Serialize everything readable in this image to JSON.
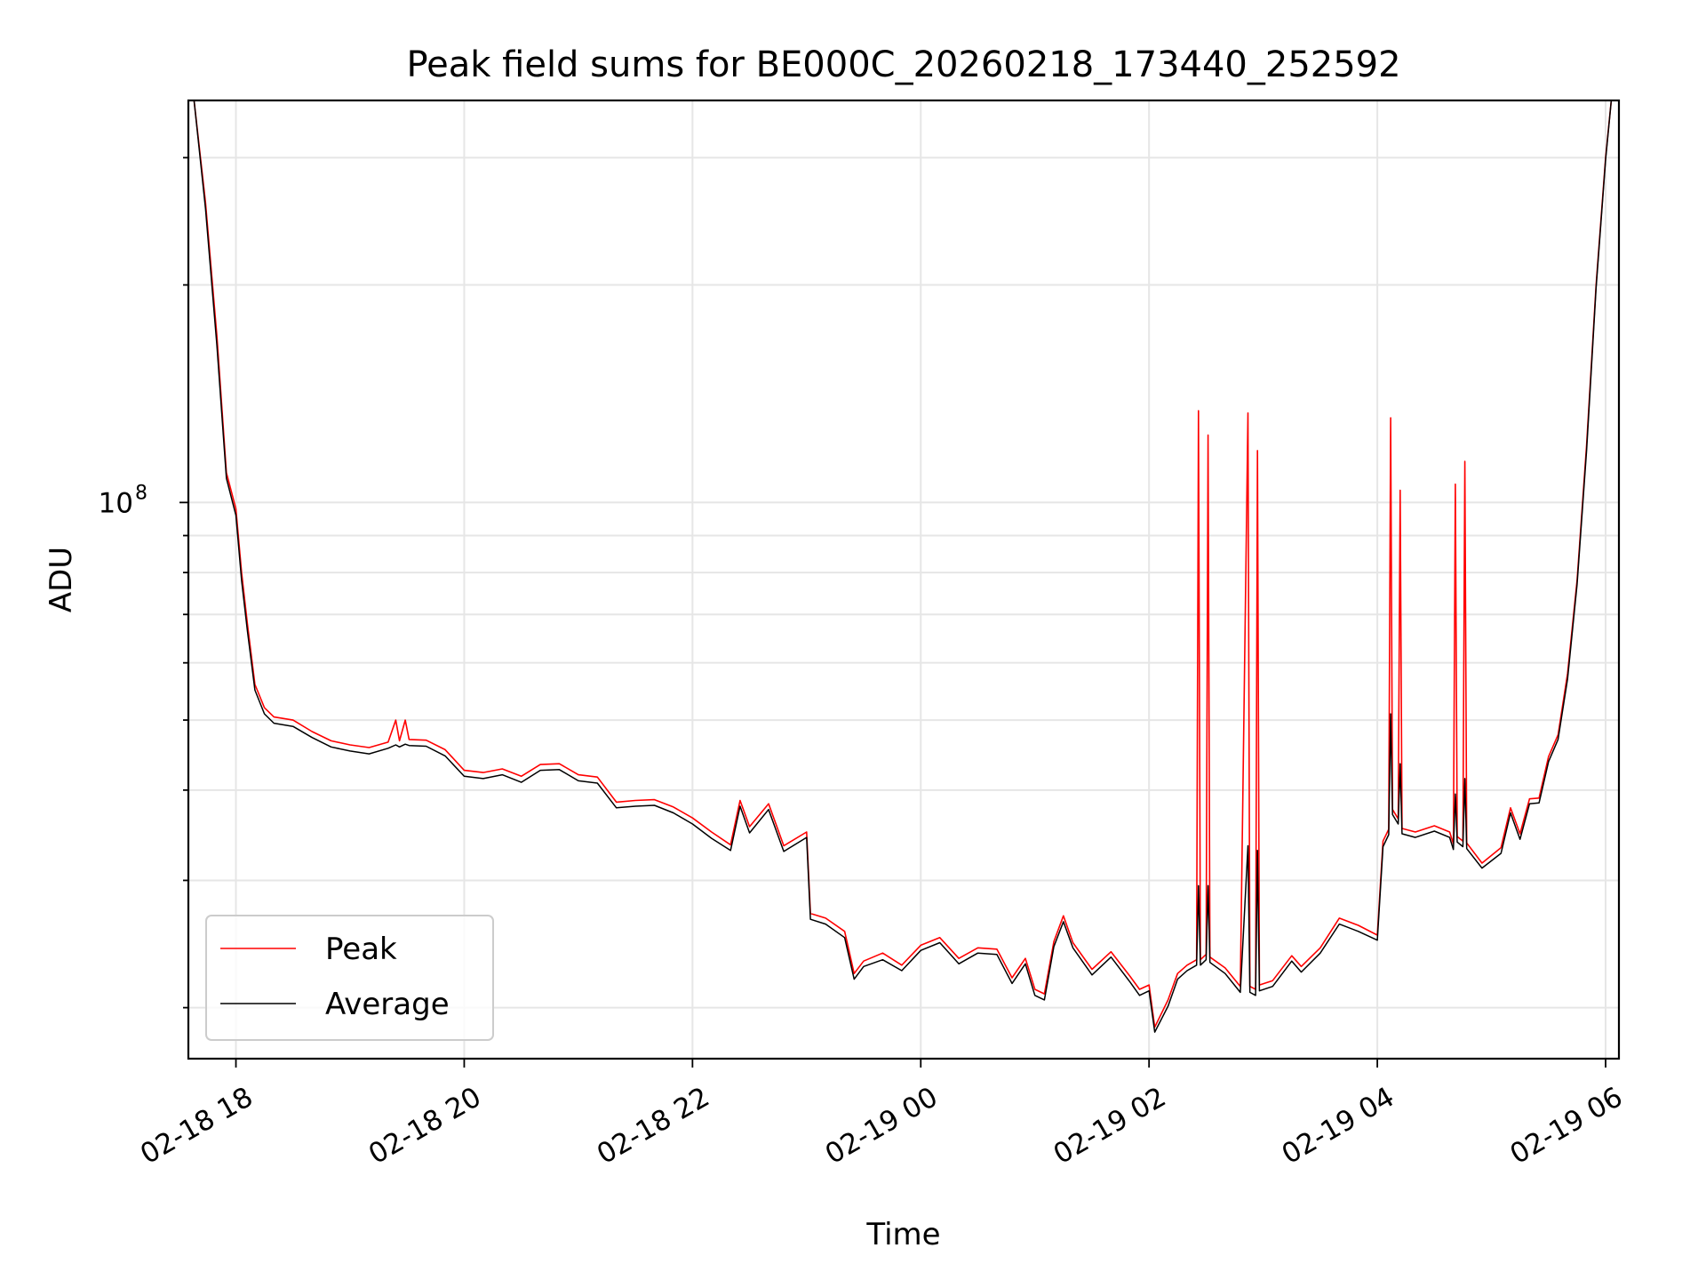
{
  "chart_data": {
    "type": "line",
    "title": "Peak field sums for BE000C_20260218_173440_252592",
    "xlabel": "Time",
    "ylabel": "ADU",
    "y_scale": "log",
    "ylim": [
      17000000,
      360000000
    ],
    "xlim": [
      "2026-02-18T17:35",
      "2026-02-19T06:07"
    ],
    "x_ticks": [
      {
        "t": "2026-02-18T18:00",
        "label": "02-18 18"
      },
      {
        "t": "2026-02-18T20:00",
        "label": "02-18 20"
      },
      {
        "t": "2026-02-18T22:00",
        "label": "02-18 22"
      },
      {
        "t": "2026-02-19T00:00",
        "label": "02-19 00"
      },
      {
        "t": "2026-02-19T02:00",
        "label": "02-19 02"
      },
      {
        "t": "2026-02-19T04:00",
        "label": "02-19 04"
      },
      {
        "t": "2026-02-19T06:00",
        "label": "02-19 06"
      }
    ],
    "y_ticks": [
      {
        "value": 100000000,
        "base": "10",
        "exp": "8"
      }
    ],
    "grid": true,
    "legend_position": "lower-left",
    "series": [
      {
        "name": "Peak",
        "color": "#ff0000",
        "points": [
          [
            "2026-02-18T17:38",
            360000000
          ],
          [
            "2026-02-18T17:44",
            260000000
          ],
          [
            "2026-02-18T17:50",
            170000000
          ],
          [
            "2026-02-18T17:55",
            110000000
          ],
          [
            "2026-02-18T18:00",
            98000000
          ],
          [
            "2026-02-18T18:03",
            80000000
          ],
          [
            "2026-02-18T18:06",
            68000000
          ],
          [
            "2026-02-18T18:10",
            56000000
          ],
          [
            "2026-02-18T18:15",
            52000000
          ],
          [
            "2026-02-18T18:20",
            50500000
          ],
          [
            "2026-02-18T18:30",
            50000000
          ],
          [
            "2026-02-18T18:40",
            48200000
          ],
          [
            "2026-02-18T18:50",
            46800000
          ],
          [
            "2026-02-18T19:00",
            46200000
          ],
          [
            "2026-02-18T19:10",
            45800000
          ],
          [
            "2026-02-18T19:20",
            46600000
          ],
          [
            "2026-02-18T19:24",
            50000000
          ],
          [
            "2026-02-18T19:26",
            46800000
          ],
          [
            "2026-02-18T19:29",
            50000000
          ],
          [
            "2026-02-18T19:31",
            47000000
          ],
          [
            "2026-02-18T19:40",
            46900000
          ],
          [
            "2026-02-18T19:50",
            45500000
          ],
          [
            "2026-02-18T20:00",
            42600000
          ],
          [
            "2026-02-18T20:10",
            42300000
          ],
          [
            "2026-02-18T20:20",
            42800000
          ],
          [
            "2026-02-18T20:30",
            41800000
          ],
          [
            "2026-02-18T20:40",
            43400000
          ],
          [
            "2026-02-18T20:50",
            43500000
          ],
          [
            "2026-02-18T21:00",
            42000000
          ],
          [
            "2026-02-18T21:10",
            41700000
          ],
          [
            "2026-02-18T21:20",
            38500000
          ],
          [
            "2026-02-18T21:30",
            38700000
          ],
          [
            "2026-02-18T21:40",
            38800000
          ],
          [
            "2026-02-18T21:50",
            37900000
          ],
          [
            "2026-02-18T22:00",
            36600000
          ],
          [
            "2026-02-18T22:10",
            35000000
          ],
          [
            "2026-02-18T22:20",
            33600000
          ],
          [
            "2026-02-18T22:25",
            38700000
          ],
          [
            "2026-02-18T22:30",
            35600000
          ],
          [
            "2026-02-18T22:40",
            38300000
          ],
          [
            "2026-02-18T22:48",
            33500000
          ],
          [
            "2026-02-18T23:00",
            35000000
          ],
          [
            "2026-02-18T23:02",
            27000000
          ],
          [
            "2026-02-18T23:10",
            26600000
          ],
          [
            "2026-02-18T23:20",
            25500000
          ],
          [
            "2026-02-18T23:25",
            22300000
          ],
          [
            "2026-02-18T23:30",
            23200000
          ],
          [
            "2026-02-18T23:40",
            23800000
          ],
          [
            "2026-02-18T23:50",
            22900000
          ],
          [
            "2026-02-19T00:00",
            24400000
          ],
          [
            "2026-02-19T00:10",
            25000000
          ],
          [
            "2026-02-19T00:20",
            23400000
          ],
          [
            "2026-02-19T00:30",
            24200000
          ],
          [
            "2026-02-19T00:40",
            24100000
          ],
          [
            "2026-02-19T00:48",
            22000000
          ],
          [
            "2026-02-19T00:55",
            23400000
          ],
          [
            "2026-02-19T01:00",
            21200000
          ],
          [
            "2026-02-19T01:05",
            20900000
          ],
          [
            "2026-02-19T01:10",
            24700000
          ],
          [
            "2026-02-19T01:15",
            26800000
          ],
          [
            "2026-02-19T01:20",
            24600000
          ],
          [
            "2026-02-19T01:30",
            22600000
          ],
          [
            "2026-02-19T01:40",
            23900000
          ],
          [
            "2026-02-19T01:50",
            22100000
          ],
          [
            "2026-02-19T01:55",
            21200000
          ],
          [
            "2026-02-19T02:00",
            21500000
          ],
          [
            "2026-02-19T02:03",
            18800000
          ],
          [
            "2026-02-19T02:10",
            20500000
          ],
          [
            "2026-02-19T02:15",
            22300000
          ],
          [
            "2026-02-19T02:20",
            22900000
          ],
          [
            "2026-02-19T02:25",
            23300000
          ],
          [
            "2026-02-19T02:26",
            134000000
          ],
          [
            "2026-02-19T02:27",
            23300000
          ],
          [
            "2026-02-19T02:30",
            23700000
          ],
          [
            "2026-02-19T02:31",
            124000000
          ],
          [
            "2026-02-19T02:32",
            23500000
          ],
          [
            "2026-02-19T02:40",
            22700000
          ],
          [
            "2026-02-19T02:48",
            21400000
          ],
          [
            "2026-02-19T02:52",
            133000000
          ],
          [
            "2026-02-19T02:53",
            21400000
          ],
          [
            "2026-02-19T02:56",
            21200000
          ],
          [
            "2026-02-19T02:57",
            118000000
          ],
          [
            "2026-02-19T02:58",
            21500000
          ],
          [
            "2026-02-19T03:05",
            21800000
          ],
          [
            "2026-02-19T03:15",
            23600000
          ],
          [
            "2026-02-19T03:20",
            22800000
          ],
          [
            "2026-02-19T03:30",
            24200000
          ],
          [
            "2026-02-19T03:40",
            26600000
          ],
          [
            "2026-02-19T03:50",
            26000000
          ],
          [
            "2026-02-19T04:00",
            25200000
          ],
          [
            "2026-02-19T04:03",
            34000000
          ],
          [
            "2026-02-19T04:06",
            35300000
          ],
          [
            "2026-02-19T04:07",
            131000000
          ],
          [
            "2026-02-19T04:08",
            37600000
          ],
          [
            "2026-02-19T04:11",
            36500000
          ],
          [
            "2026-02-19T04:12",
            104000000
          ],
          [
            "2026-02-19T04:13",
            35400000
          ],
          [
            "2026-02-19T04:20",
            35000000
          ],
          [
            "2026-02-19T04:30",
            35700000
          ],
          [
            "2026-02-19T04:38",
            35000000
          ],
          [
            "2026-02-19T04:40",
            33700000
          ],
          [
            "2026-02-19T04:41",
            106000000
          ],
          [
            "2026-02-19T04:42",
            34500000
          ],
          [
            "2026-02-19T04:45",
            34000000
          ],
          [
            "2026-02-19T04:46",
            114000000
          ],
          [
            "2026-02-19T04:47",
            33800000
          ],
          [
            "2026-02-19T04:55",
            31700000
          ],
          [
            "2026-02-19T05:05",
            33300000
          ],
          [
            "2026-02-19T05:10",
            37800000
          ],
          [
            "2026-02-19T05:15",
            34800000
          ],
          [
            "2026-02-19T05:20",
            38900000
          ],
          [
            "2026-02-19T05:25",
            39000000
          ],
          [
            "2026-02-19T05:30",
            44500000
          ],
          [
            "2026-02-19T05:35",
            47700000
          ],
          [
            "2026-02-19T05:40",
            58000000
          ],
          [
            "2026-02-19T05:45",
            78000000
          ],
          [
            "2026-02-19T05:50",
            120000000
          ],
          [
            "2026-02-19T05:55",
            200000000
          ],
          [
            "2026-02-19T06:00",
            300000000
          ],
          [
            "2026-02-19T06:03",
            360000000
          ]
        ]
      },
      {
        "name": "Average",
        "color": "#000000",
        "points": [
          [
            "2026-02-18T17:38",
            360000000
          ],
          [
            "2026-02-18T17:44",
            255000000
          ],
          [
            "2026-02-18T17:50",
            165000000
          ],
          [
            "2026-02-18T17:55",
            108000000
          ],
          [
            "2026-02-18T18:00",
            96000000
          ],
          [
            "2026-02-18T18:03",
            78000000
          ],
          [
            "2026-02-18T18:06",
            66500000
          ],
          [
            "2026-02-18T18:10",
            55000000
          ],
          [
            "2026-02-18T18:15",
            51000000
          ],
          [
            "2026-02-18T18:20",
            49500000
          ],
          [
            "2026-02-18T18:30",
            49000000
          ],
          [
            "2026-02-18T18:40",
            47300000
          ],
          [
            "2026-02-18T18:50",
            45900000
          ],
          [
            "2026-02-18T19:00",
            45300000
          ],
          [
            "2026-02-18T19:10",
            44900000
          ],
          [
            "2026-02-18T19:20",
            45700000
          ],
          [
            "2026-02-18T19:24",
            46200000
          ],
          [
            "2026-02-18T19:26",
            45900000
          ],
          [
            "2026-02-18T19:29",
            46300000
          ],
          [
            "2026-02-18T19:31",
            46100000
          ],
          [
            "2026-02-18T19:40",
            46000000
          ],
          [
            "2026-02-18T19:50",
            44600000
          ],
          [
            "2026-02-18T20:00",
            41800000
          ],
          [
            "2026-02-18T20:10",
            41500000
          ],
          [
            "2026-02-18T20:20",
            42000000
          ],
          [
            "2026-02-18T20:30",
            41000000
          ],
          [
            "2026-02-18T20:40",
            42600000
          ],
          [
            "2026-02-18T20:50",
            42700000
          ],
          [
            "2026-02-18T21:00",
            41200000
          ],
          [
            "2026-02-18T21:10",
            40900000
          ],
          [
            "2026-02-18T21:20",
            37800000
          ],
          [
            "2026-02-18T21:30",
            38000000
          ],
          [
            "2026-02-18T21:40",
            38100000
          ],
          [
            "2026-02-18T21:50",
            37200000
          ],
          [
            "2026-02-18T22:00",
            35900000
          ],
          [
            "2026-02-18T22:10",
            34300000
          ],
          [
            "2026-02-18T22:20",
            33000000
          ],
          [
            "2026-02-18T22:25",
            38000000
          ],
          [
            "2026-02-18T22:30",
            34900000
          ],
          [
            "2026-02-18T22:40",
            37600000
          ],
          [
            "2026-02-18T22:48",
            32900000
          ],
          [
            "2026-02-18T23:00",
            34400000
          ],
          [
            "2026-02-18T23:02",
            26500000
          ],
          [
            "2026-02-18T23:10",
            26100000
          ],
          [
            "2026-02-18T23:20",
            25000000
          ],
          [
            "2026-02-18T23:25",
            21900000
          ],
          [
            "2026-02-18T23:30",
            22800000
          ],
          [
            "2026-02-18T23:40",
            23300000
          ],
          [
            "2026-02-18T23:50",
            22500000
          ],
          [
            "2026-02-19T00:00",
            24000000
          ],
          [
            "2026-02-19T00:10",
            24600000
          ],
          [
            "2026-02-19T00:20",
            23000000
          ],
          [
            "2026-02-19T00:30",
            23800000
          ],
          [
            "2026-02-19T00:40",
            23700000
          ],
          [
            "2026-02-19T00:48",
            21600000
          ],
          [
            "2026-02-19T00:55",
            23000000
          ],
          [
            "2026-02-19T01:00",
            20800000
          ],
          [
            "2026-02-19T01:05",
            20500000
          ],
          [
            "2026-02-19T01:10",
            24300000
          ],
          [
            "2026-02-19T01:15",
            26300000
          ],
          [
            "2026-02-19T01:20",
            24200000
          ],
          [
            "2026-02-19T01:30",
            22200000
          ],
          [
            "2026-02-19T01:40",
            23500000
          ],
          [
            "2026-02-19T01:50",
            21700000
          ],
          [
            "2026-02-19T01:55",
            20800000
          ],
          [
            "2026-02-19T02:00",
            21100000
          ],
          [
            "2026-02-19T02:03",
            18500000
          ],
          [
            "2026-02-19T02:10",
            20100000
          ],
          [
            "2026-02-19T02:15",
            21900000
          ],
          [
            "2026-02-19T02:20",
            22500000
          ],
          [
            "2026-02-19T02:25",
            22900000
          ],
          [
            "2026-02-19T02:26",
            29500000
          ],
          [
            "2026-02-19T02:27",
            22900000
          ],
          [
            "2026-02-19T02:30",
            23300000
          ],
          [
            "2026-02-19T02:31",
            29500000
          ],
          [
            "2026-02-19T02:32",
            23100000
          ],
          [
            "2026-02-19T02:40",
            22300000
          ],
          [
            "2026-02-19T02:48",
            21000000
          ],
          [
            "2026-02-19T02:52",
            33500000
          ],
          [
            "2026-02-19T02:53",
            21000000
          ],
          [
            "2026-02-19T02:56",
            20800000
          ],
          [
            "2026-02-19T02:57",
            33000000
          ],
          [
            "2026-02-19T02:58",
            21100000
          ],
          [
            "2026-02-19T03:05",
            21400000
          ],
          [
            "2026-02-19T03:15",
            23200000
          ],
          [
            "2026-02-19T03:20",
            22400000
          ],
          [
            "2026-02-19T03:30",
            23800000
          ],
          [
            "2026-02-19T03:40",
            26100000
          ],
          [
            "2026-02-19T03:50",
            25500000
          ],
          [
            "2026-02-19T04:00",
            24800000
          ],
          [
            "2026-02-19T04:03",
            33400000
          ],
          [
            "2026-02-19T04:06",
            34700000
          ],
          [
            "2026-02-19T04:07",
            51000000
          ],
          [
            "2026-02-19T04:08",
            37000000
          ],
          [
            "2026-02-19T04:11",
            35900000
          ],
          [
            "2026-02-19T04:12",
            43500000
          ],
          [
            "2026-02-19T04:13",
            34800000
          ],
          [
            "2026-02-19T04:20",
            34400000
          ],
          [
            "2026-02-19T04:30",
            35100000
          ],
          [
            "2026-02-19T04:38",
            34400000
          ],
          [
            "2026-02-19T04:40",
            33100000
          ],
          [
            "2026-02-19T04:41",
            39500000
          ],
          [
            "2026-02-19T04:42",
            33900000
          ],
          [
            "2026-02-19T04:45",
            33400000
          ],
          [
            "2026-02-19T04:46",
            41500000
          ],
          [
            "2026-02-19T04:47",
            33200000
          ],
          [
            "2026-02-19T04:55",
            31200000
          ],
          [
            "2026-02-19T05:05",
            32700000
          ],
          [
            "2026-02-19T05:10",
            37200000
          ],
          [
            "2026-02-19T05:15",
            34200000
          ],
          [
            "2026-02-19T05:20",
            38300000
          ],
          [
            "2026-02-19T05:25",
            38400000
          ],
          [
            "2026-02-19T05:30",
            43800000
          ],
          [
            "2026-02-19T05:35",
            47000000
          ],
          [
            "2026-02-19T05:40",
            57000000
          ],
          [
            "2026-02-19T05:45",
            77000000
          ],
          [
            "2026-02-19T05:50",
            118000000
          ],
          [
            "2026-02-19T05:55",
            198000000
          ],
          [
            "2026-02-19T06:00",
            298000000
          ],
          [
            "2026-02-19T06:03",
            360000000
          ]
        ]
      }
    ]
  }
}
